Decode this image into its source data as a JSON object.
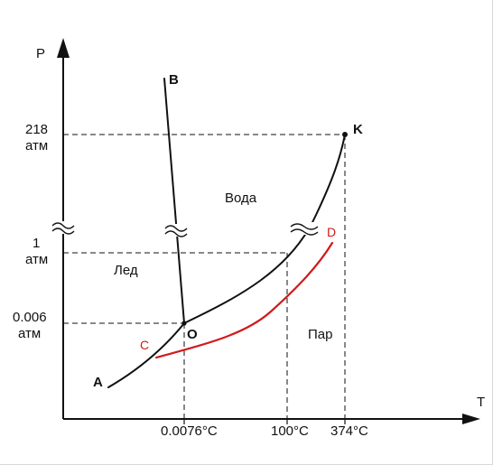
{
  "axes": {
    "y_label": "P",
    "x_label": "T"
  },
  "pressure_ticks": {
    "p218_num": "218",
    "p218_unit": "атм",
    "p1_num": "1",
    "p1_unit": "атм",
    "p0006_num": "0.006",
    "p0006_unit": "атм"
  },
  "temperature_ticks": {
    "t_triple": "0.0076°C",
    "t_boil": "100°C",
    "t_crit": "374°C"
  },
  "regions": {
    "water": "Вода",
    "ice": "Лед",
    "vapor": "Пар"
  },
  "points": {
    "A": "A",
    "B": "B",
    "K": "K",
    "O": "O",
    "C": "C",
    "D": "D"
  },
  "colors": {
    "main_line": "#111111",
    "supercooled_curve": "#d21a1a"
  }
}
